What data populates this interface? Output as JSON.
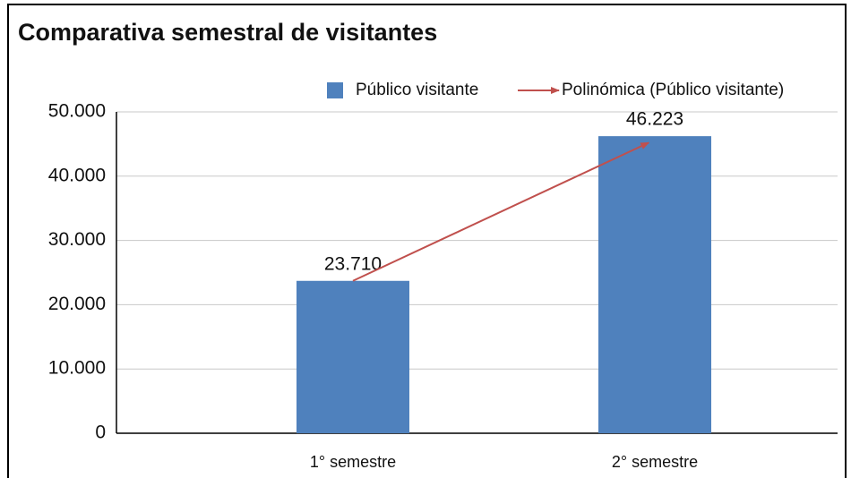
{
  "chart_data": {
    "type": "bar",
    "title": "Comparativa semestral de visitantes",
    "categories": [
      "1° semestre",
      "2° semestre"
    ],
    "series": [
      {
        "name": "Público visitante",
        "color": "#4f81bd",
        "values": [
          23710,
          46223
        ],
        "value_labels": [
          "23.710",
          "46.223"
        ]
      }
    ],
    "trendline": {
      "name": "Polinómica (Público visitante)",
      "color": "#c0504d"
    },
    "ylim": [
      0,
      50000
    ],
    "yticks": [
      0,
      {
        "value": 10000,
        "label": "10.000"
      },
      {
        "value": 20000,
        "label": "20.000"
      },
      {
        "value": 30000,
        "label": "30.000"
      },
      {
        "value": 40000,
        "label": "40.000"
      },
      {
        "value": 50000,
        "label": "50.000"
      }
    ],
    "grid": true,
    "legend": "top-right"
  }
}
